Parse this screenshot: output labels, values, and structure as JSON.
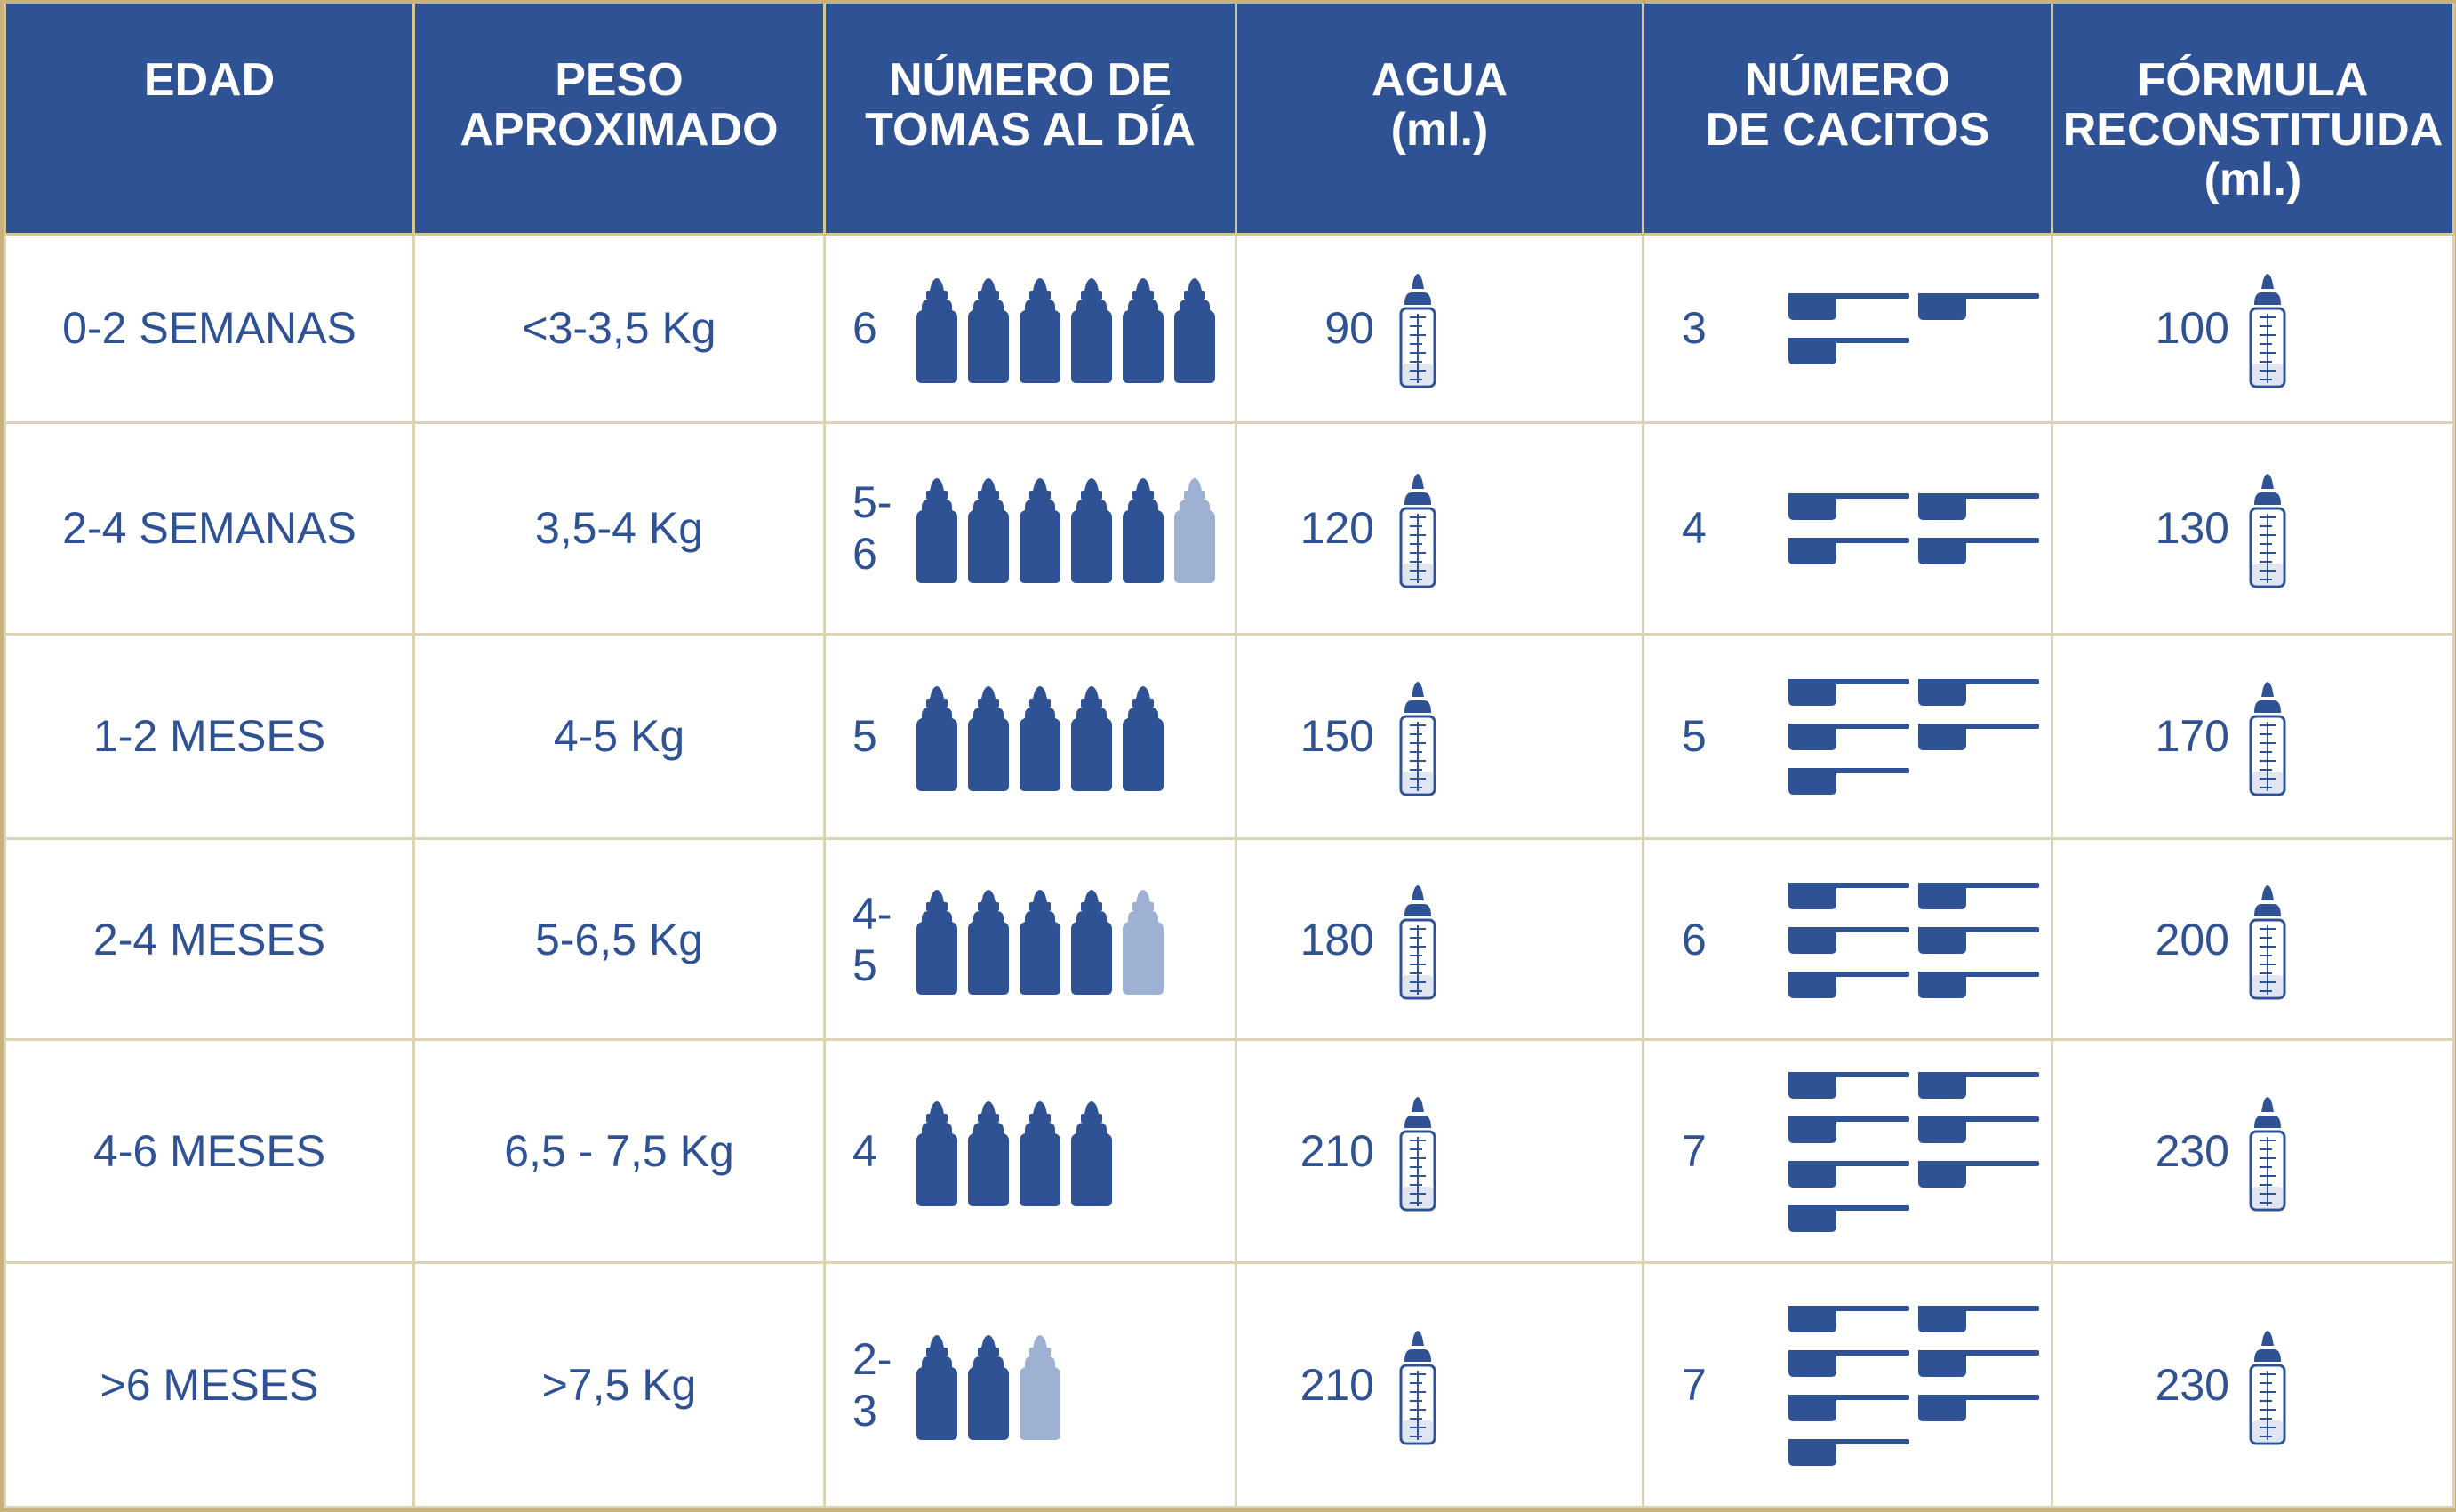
{
  "headers": [
    [
      "EDAD"
    ],
    [
      "PESO",
      "APROXIMADO"
    ],
    [
      "NÚMERO DE",
      "TOMAS AL DÍA"
    ],
    [
      "AGUA",
      "(ml.)"
    ],
    [
      "NÚMERO",
      "DE CACITOS"
    ],
    [
      "FÓRMULA",
      "RECONSTITUIDA",
      "(ml.)"
    ]
  ],
  "rows": [
    {
      "edad": "0-2 SEMANAS",
      "peso": "<3-3,5 Kg",
      "tomas": "6",
      "tomas_full": 6,
      "tomas_light": 0,
      "agua": "90",
      "cacitos": "3",
      "cacitos_n": 3,
      "formula": "100"
    },
    {
      "edad": "2-4 SEMANAS",
      "peso": "3,5-4 Kg",
      "tomas": "5-6",
      "tomas_full": 5,
      "tomas_light": 1,
      "agua": "120",
      "cacitos": "4",
      "cacitos_n": 4,
      "formula": "130"
    },
    {
      "edad": "1-2 MESES",
      "peso": "4-5 Kg",
      "tomas": "5",
      "tomas_full": 5,
      "tomas_light": 0,
      "agua": "150",
      "cacitos": "5",
      "cacitos_n": 5,
      "formula": "170"
    },
    {
      "edad": "2-4 MESES",
      "peso": "5-6,5 Kg",
      "tomas": "4-5",
      "tomas_full": 4,
      "tomas_light": 1,
      "agua": "180",
      "cacitos": "6",
      "cacitos_n": 6,
      "formula": "200"
    },
    {
      "edad": "4-6 MESES",
      "peso": "6,5 - 7,5 Kg",
      "tomas": "4",
      "tomas_full": 4,
      "tomas_light": 0,
      "agua": "210",
      "cacitos": "7",
      "cacitos_n": 7,
      "formula": "230"
    },
    {
      "edad": ">6 MESES",
      "peso": ">7,5 Kg",
      "tomas": "2-3",
      "tomas_full": 2,
      "tomas_light": 1,
      "agua": "210",
      "cacitos": "7",
      "cacitos_n": 7,
      "formula": "230"
    }
  ],
  "colors": {
    "header_bg": "#2f5294",
    "text": "#2f5294",
    "bottle_full": "#2f5294",
    "bottle_light": "#9fb1d2",
    "border": "#dcd2b4",
    "frame": "#c9b27a"
  },
  "icons": {
    "feed": "baby-bottle-icon",
    "water": "measured-bottle-icon",
    "scoop": "scoop-icon"
  }
}
